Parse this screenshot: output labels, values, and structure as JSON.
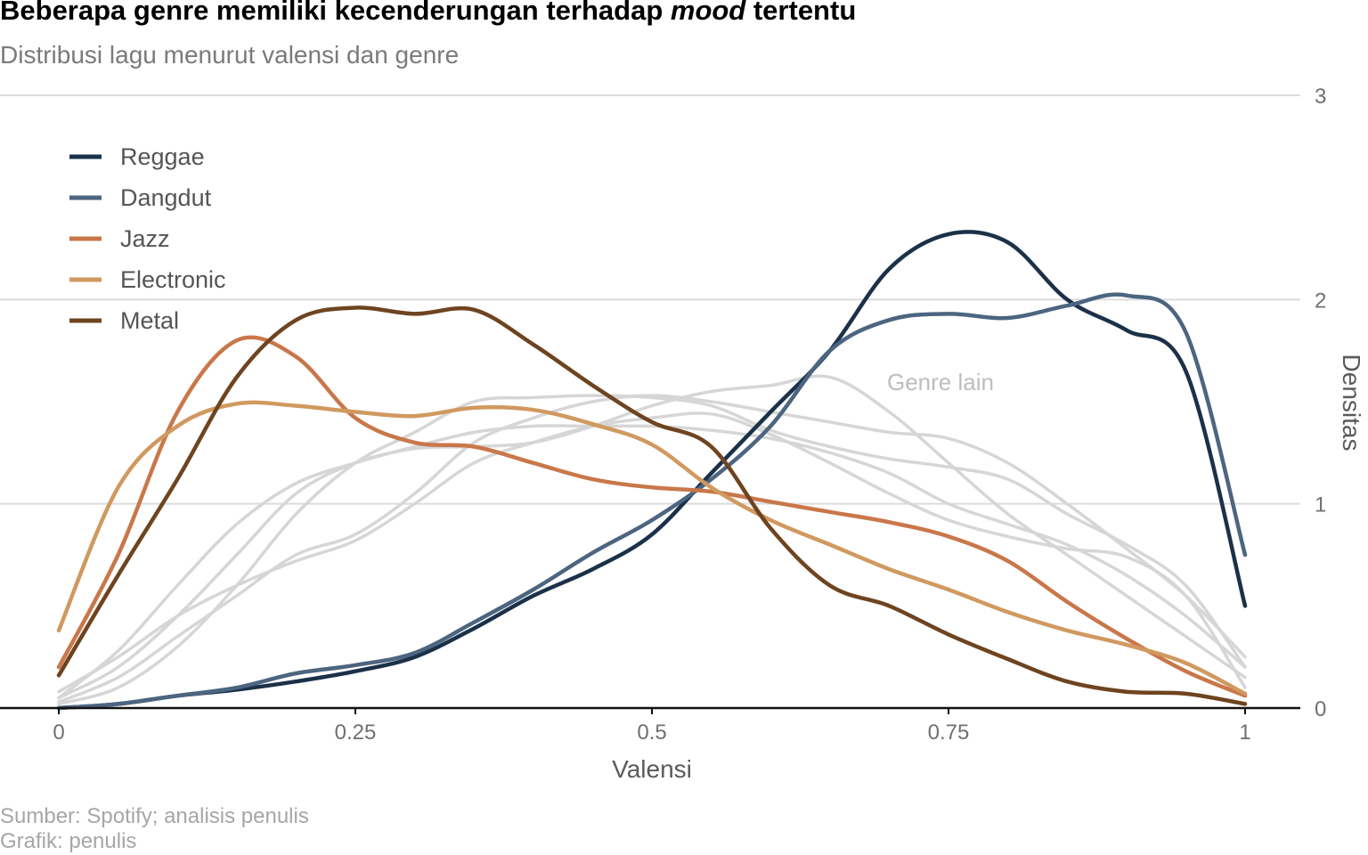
{
  "title_main": "Beberapa genre memiliki kecenderungan terhadap ",
  "title_em": "mood",
  "title_end": " tertentu",
  "subtitle": "Distribusi lagu menurut valensi dan genre",
  "caption": {
    "line1": "Sumber: Spotify; analisis penulis",
    "line2": "Grafik: penulis"
  },
  "chart_data": {
    "type": "line",
    "title": "Beberapa genre memiliki kecenderungan terhadap mood tertentu",
    "subtitle": "Distribusi lagu menurut valensi dan genre",
    "xlabel": "Valensi",
    "ylabel": "Densitas",
    "xlim": [
      0,
      1
    ],
    "ylim": [
      0,
      3
    ],
    "x_ticks": [
      0,
      0.25,
      0.5,
      0.75,
      1
    ],
    "x_tick_labels": [
      "0",
      "0.25",
      "0.5",
      "0.75",
      "1"
    ],
    "y_ticks": [
      0,
      1,
      2,
      3
    ],
    "y_tick_labels": [
      "0",
      "1",
      "2",
      "3"
    ],
    "y_axis_side": "right",
    "grid": "horizontal",
    "legend_position": "top-left",
    "annotation": "Genre lain",
    "x": [
      0,
      0.05,
      0.1,
      0.15,
      0.2,
      0.25,
      0.3,
      0.35,
      0.4,
      0.45,
      0.5,
      0.55,
      0.6,
      0.65,
      0.7,
      0.75,
      0.8,
      0.85,
      0.9,
      0.95,
      1
    ],
    "series": [
      {
        "name": "Reggae",
        "color": "#1b3149",
        "values": [
          0.0,
          0.02,
          0.06,
          0.09,
          0.13,
          0.18,
          0.25,
          0.39,
          0.55,
          0.68,
          0.85,
          1.15,
          1.45,
          1.75,
          2.15,
          2.32,
          2.28,
          2.0,
          1.85,
          1.65,
          0.5
        ]
      },
      {
        "name": "Dangdut",
        "color": "#4c6580",
        "values": [
          0.0,
          0.02,
          0.06,
          0.1,
          0.17,
          0.21,
          0.27,
          0.42,
          0.58,
          0.76,
          0.92,
          1.12,
          1.38,
          1.75,
          1.9,
          1.93,
          1.91,
          1.97,
          2.02,
          1.84,
          0.75
        ]
      },
      {
        "name": "Jazz",
        "color": "#c9774a",
        "values": [
          0.2,
          0.75,
          1.45,
          1.8,
          1.72,
          1.42,
          1.3,
          1.28,
          1.2,
          1.12,
          1.08,
          1.06,
          1.01,
          0.96,
          0.91,
          0.84,
          0.72,
          0.52,
          0.34,
          0.18,
          0.06
        ]
      },
      {
        "name": "Electronic",
        "color": "#d0995f",
        "values": [
          0.38,
          1.08,
          1.38,
          1.49,
          1.48,
          1.45,
          1.43,
          1.47,
          1.46,
          1.39,
          1.29,
          1.08,
          0.92,
          0.8,
          0.68,
          0.58,
          0.47,
          0.38,
          0.31,
          0.22,
          0.07
        ]
      },
      {
        "name": "Metal",
        "color": "#6e4420",
        "values": [
          0.16,
          0.65,
          1.12,
          1.62,
          1.9,
          1.96,
          1.93,
          1.95,
          1.78,
          1.58,
          1.4,
          1.28,
          0.88,
          0.6,
          0.5,
          0.36,
          0.24,
          0.13,
          0.08,
          0.07,
          0.02
        ]
      },
      {
        "color": "#d6d6d6",
        "values": [
          0.02,
          0.1,
          0.3,
          0.6,
          0.95,
          1.2,
          1.35,
          1.5,
          1.52,
          1.53,
          1.52,
          1.48,
          1.36,
          1.28,
          1.22,
          1.18,
          1.12,
          0.95,
          0.8,
          0.6,
          0.2
        ]
      },
      {
        "color": "#d6d6d6",
        "values": [
          0.05,
          0.2,
          0.45,
          0.75,
          1.05,
          1.2,
          1.27,
          1.28,
          1.3,
          1.38,
          1.48,
          1.55,
          1.58,
          1.62,
          1.45,
          1.2,
          0.95,
          0.75,
          0.55,
          0.35,
          0.15
        ]
      },
      {
        "color": "#d6d6d6",
        "values": [
          0.03,
          0.15,
          0.35,
          0.55,
          0.75,
          0.85,
          1.05,
          1.3,
          1.42,
          1.5,
          1.53,
          1.5,
          1.45,
          1.4,
          1.35,
          1.32,
          1.2,
          1.0,
          0.78,
          0.55,
          0.25
        ]
      },
      {
        "color": "#d6d6d6",
        "values": [
          0.08,
          0.25,
          0.45,
          0.6,
          0.72,
          0.82,
          1.0,
          1.2,
          1.3,
          1.38,
          1.42,
          1.44,
          1.34,
          1.2,
          1.05,
          0.92,
          0.84,
          0.78,
          0.74,
          0.55,
          0.1
        ]
      },
      {
        "color": "#d6d6d6",
        "values": [
          0.05,
          0.28,
          0.6,
          0.9,
          1.1,
          1.2,
          1.28,
          1.35,
          1.38,
          1.38,
          1.38,
          1.36,
          1.32,
          1.25,
          1.15,
          1.0,
          0.9,
          0.8,
          0.65,
          0.45,
          0.2
        ]
      }
    ]
  }
}
